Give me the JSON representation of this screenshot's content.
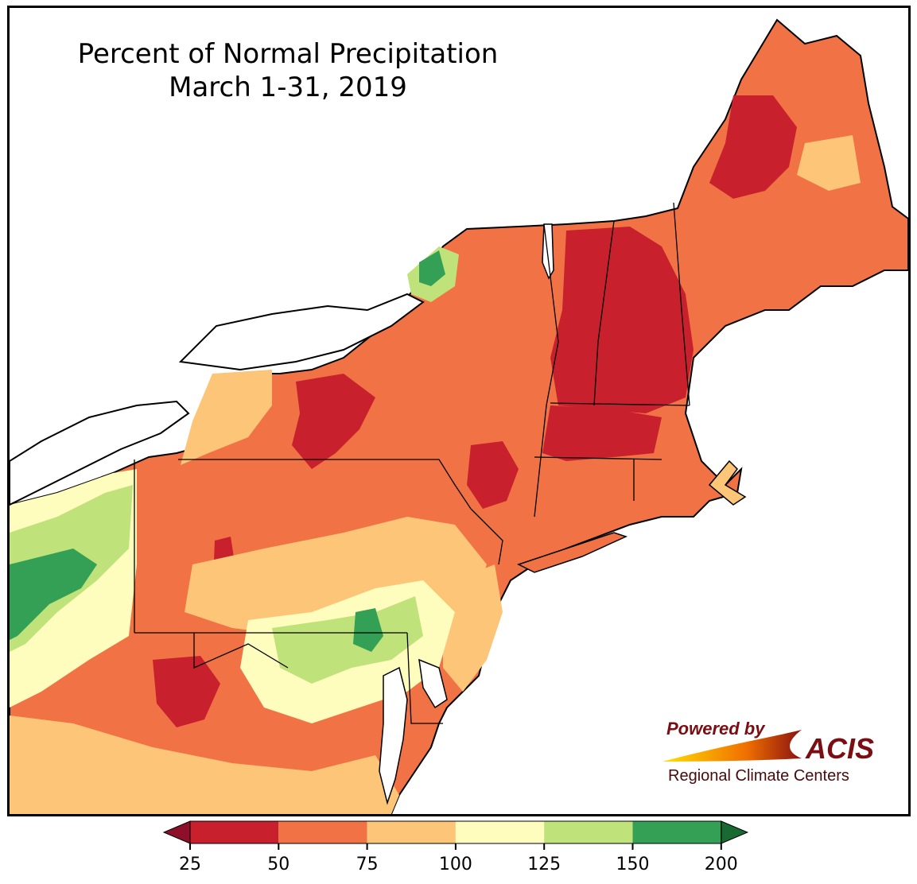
{
  "title": {
    "line1": "Percent of Normal Precipitation",
    "line2": "March 1-31, 2019"
  },
  "logo": {
    "powered_by": "Powered by",
    "brand": "ACIS",
    "subtitle": "Regional Climate Centers"
  },
  "legend": {
    "ticks": [
      "25",
      "50",
      "75",
      "100",
      "125",
      "150",
      "200"
    ],
    "bins": [
      {
        "range": "25-50",
        "color": "#c8202c"
      },
      {
        "range": "50-75",
        "color": "#f07245"
      },
      {
        "range": "75-100",
        "color": "#fdc578"
      },
      {
        "range": "100-125",
        "color": "#fefdbd"
      },
      {
        "range": "125-150",
        "color": "#bfe27a"
      },
      {
        "range": "150-200",
        "color": "#33a055"
      }
    ],
    "under_color": "#8e0f2a",
    "over_color": "#186a30"
  },
  "colors": {
    "very_dry": "#c8202c",
    "dry": "#f07245",
    "below_normal": "#fdc578",
    "above_normal": "#fefdbd",
    "wet": "#bfe27a",
    "very_wet": "#33a055",
    "water": "#ffffff"
  }
}
